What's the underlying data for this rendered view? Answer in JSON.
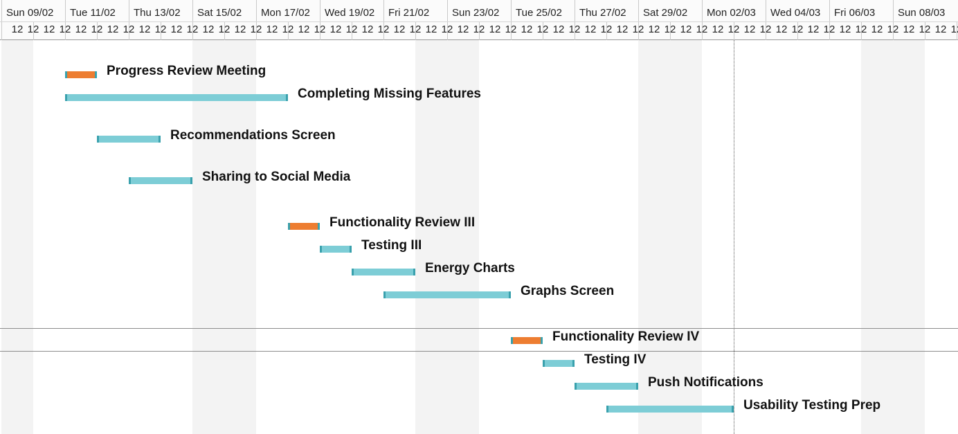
{
  "timeline": {
    "dates": [
      "Sun 09/02",
      "Tue 11/02",
      "Thu 13/02",
      "Sat 15/02",
      "Mon 17/02",
      "Wed 19/02",
      "Fri 21/02",
      "Sun 23/02",
      "Tue 25/02",
      "Thu 27/02",
      "Sat 29/02",
      "Mon 02/03",
      "Wed 04/03",
      "Fri 06/03",
      "Sun 08/03"
    ],
    "hour_label": "12"
  },
  "tasks": [
    {
      "name": "Progress Review Meeting",
      "kind": "milestone",
      "start": "2020-02-11",
      "end": "2020-02-12"
    },
    {
      "name": "Completing Missing Features",
      "kind": "task",
      "start": "2020-02-11",
      "end": "2020-02-18"
    },
    {
      "name": "Recommendations Screen",
      "kind": "task",
      "start": "2020-02-12",
      "end": "2020-02-14"
    },
    {
      "name": "Sharing to Social Media",
      "kind": "task",
      "start": "2020-02-13",
      "end": "2020-02-15"
    },
    {
      "name": "Functionality Review III",
      "kind": "milestone",
      "start": "2020-02-18",
      "end": "2020-02-19"
    },
    {
      "name": "Testing III",
      "kind": "task",
      "start": "2020-02-19",
      "end": "2020-02-20"
    },
    {
      "name": "Energy Charts",
      "kind": "task",
      "start": "2020-02-20",
      "end": "2020-02-22"
    },
    {
      "name": "Graphs Screen",
      "kind": "task",
      "start": "2020-02-21",
      "end": "2020-02-25"
    },
    {
      "name": "Functionality Review IV",
      "kind": "milestone",
      "start": "2020-02-25",
      "end": "2020-02-26"
    },
    {
      "name": "Testing IV",
      "kind": "task",
      "start": "2020-02-26",
      "end": "2020-02-27"
    },
    {
      "name": "Push Notifications",
      "kind": "task",
      "start": "2020-02-27",
      "end": "2020-02-29"
    },
    {
      "name": "Usability Testing Prep",
      "kind": "task",
      "start": "2020-02-28",
      "end": "2020-03-03"
    }
  ],
  "colors": {
    "task_fill": "#7dcdd6",
    "task_edge": "#3aa1ad",
    "milestone_fill": "#ed7d31",
    "weekend_shade": "#f3f3f3",
    "grid": "#c9c9c9"
  }
}
